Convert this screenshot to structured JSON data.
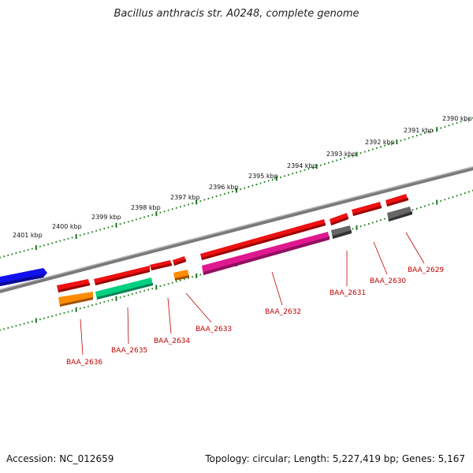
{
  "title": "Bacillus anthracis str. A0248, complete genome",
  "footer": {
    "accession": "Accession: NC_012659",
    "summary": "Topology: circular; Length: 5,227,419 bp; Genes: 5,167"
  },
  "colors": {
    "backbone": "#8a8a8a",
    "ticks": "#1a7a1a",
    "label": "#c00000",
    "red": "#ee1111",
    "blue": "#1111ee",
    "orange": "#ff8c00",
    "teal": "#00d080",
    "magenta": "#e01890",
    "gray": "#666666"
  },
  "kbp_ticks": [
    "2401 kbp",
    "2400 kbp",
    "2399 kbp",
    "2398 kbp",
    "2397 kbp",
    "2396 kbp",
    "2395 kbp",
    "2394 kbp",
    "2393 kbp",
    "2392 kbp",
    "2391 kbp",
    "2390 kbp"
  ],
  "gene_labels": [
    "BAA_2636",
    "BAA_2635",
    "BAA_2634",
    "BAA_2633",
    "BAA_2632",
    "BAA_2631",
    "BAA_2630",
    "BAA_2629"
  ]
}
